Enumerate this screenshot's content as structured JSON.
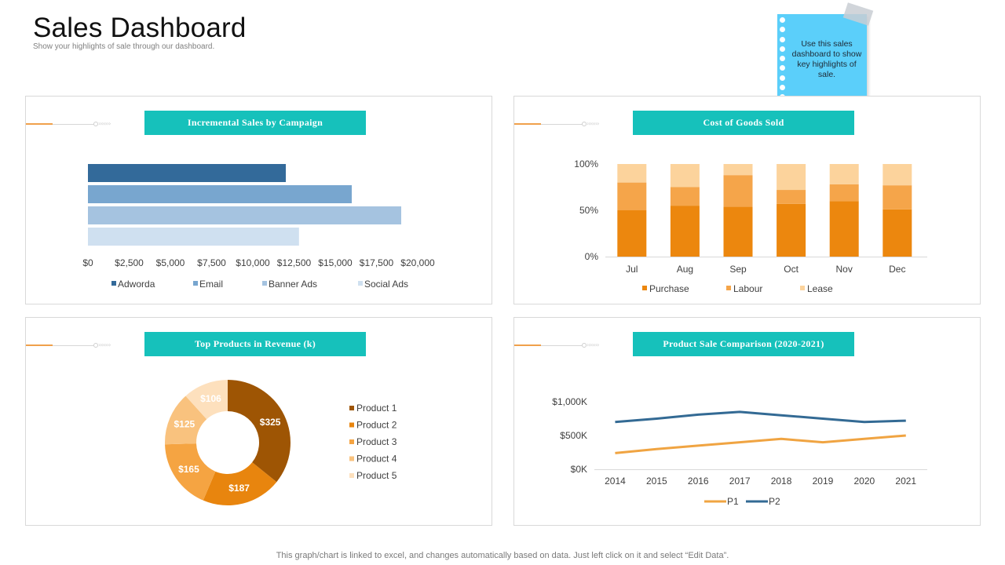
{
  "header": {
    "title": "Sales Dashboard",
    "subtitle": "Show your highlights of sale through our dashboard."
  },
  "sticky_note": {
    "text": "Use this sales dashboard to show key highlights of sale."
  },
  "panels": {
    "p1": {
      "title": "Incremental Sales by Campaign"
    },
    "p2": {
      "title": "Cost of Goods Sold"
    },
    "p3": {
      "title": "Top Products in Revenue (k)"
    },
    "p4": {
      "title": "Product Sale Comparison (2020-2021)"
    }
  },
  "footer": {
    "text": "This graph/chart is linked to excel, and changes automatically based on data. Just left click on it and select “Edit Data”."
  },
  "chart_data": [
    {
      "id": "campaign",
      "type": "bar",
      "orientation": "horizontal",
      "title": "Incremental Sales by Campaign",
      "series": [
        {
          "name": "Adworda",
          "value": 12000,
          "color": "#336a9a"
        },
        {
          "name": "Email",
          "value": 16000,
          "color": "#78a6cf"
        },
        {
          "name": "Banner Ads",
          "value": 19000,
          "color": "#a5c3e0"
        },
        {
          "name": "Social Ads",
          "value": 12800,
          "color": "#cfe0f0"
        }
      ],
      "xlim": [
        0,
        20000
      ],
      "ticks": [
        0,
        2500,
        5000,
        7500,
        10000,
        12500,
        15000,
        17500,
        20000
      ],
      "tick_labels": [
        "$0",
        "$2,500",
        "$5,000",
        "$7,500",
        "$10,000",
        "$12,500",
        "$15,000",
        "$17,500",
        "$20,000"
      ],
      "legend": "bottom"
    },
    {
      "id": "cogs",
      "type": "bar",
      "stacked": "percent",
      "title": "Cost of Goods Sold",
      "categories": [
        "Jul",
        "Aug",
        "Sep",
        "Oct",
        "Nov",
        "Dec"
      ],
      "series": [
        {
          "name": "Purchase",
          "values": [
            50,
            55,
            54,
            57,
            60,
            51
          ],
          "color": "#ec870e"
        },
        {
          "name": "Labour",
          "values": [
            30,
            20,
            34,
            15,
            18,
            26
          ],
          "color": "#f5a54a"
        },
        {
          "name": "Lease",
          "values": [
            20,
            25,
            12,
            28,
            22,
            23
          ],
          "color": "#fcd39c"
        }
      ],
      "ylim": [
        0,
        100
      ],
      "y_ticks": [
        0,
        50,
        100
      ],
      "y_tick_labels": [
        "0%",
        "50%",
        "100%"
      ],
      "legend": "bottom"
    },
    {
      "id": "products",
      "type": "pie",
      "donut": true,
      "title": "Top Products in Revenue (k)",
      "slices": [
        {
          "name": "Product 1",
          "value": 325,
          "label": "$325",
          "color": "#9e5504"
        },
        {
          "name": "Product 2",
          "value": 187,
          "label": "$187",
          "color": "#e8850e"
        },
        {
          "name": "Product 3",
          "value": 165,
          "label": "$165",
          "color": "#f5a442"
        },
        {
          "name": "Product 4",
          "value": 125,
          "label": "$125",
          "color": "#f9c27e"
        },
        {
          "name": "Product 5",
          "value": 106,
          "label": "$106",
          "color": "#fde0bd"
        }
      ],
      "legend": "right"
    },
    {
      "id": "comparison",
      "type": "line",
      "title": "Product Sale Comparison (2020-2021)",
      "x": [
        "2014",
        "2015",
        "2016",
        "2017",
        "2018",
        "2019",
        "2020",
        "2021"
      ],
      "series": [
        {
          "name": "P1",
          "values": [
            240,
            300,
            350,
            400,
            450,
            400,
            450,
            500
          ],
          "color": "#f0a442"
        },
        {
          "name": "P2",
          "values": [
            700,
            750,
            810,
            850,
            800,
            750,
            700,
            720
          ],
          "color": "#336a94"
        }
      ],
      "ylim": [
        0,
        1000
      ],
      "y_ticks": [
        0,
        500,
        1000
      ],
      "y_tick_labels": [
        "$0K",
        "$500K",
        "$1,000K"
      ],
      "legend": "bottom"
    }
  ]
}
